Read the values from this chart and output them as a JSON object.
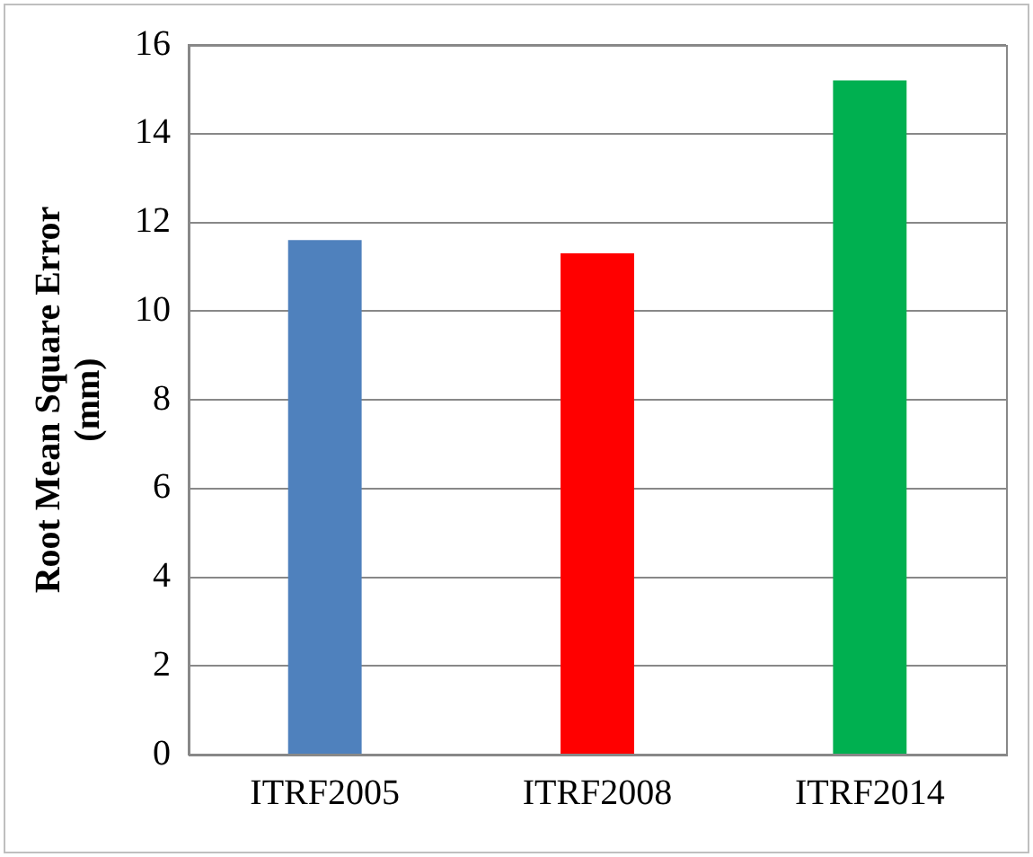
{
  "chart_data": {
    "type": "bar",
    "ylabel": "Root Mean Square Error (mm)",
    "categories": [
      "ITRF2005",
      "ITRF2008",
      "ITRF2014"
    ],
    "values": [
      11.6,
      11.3,
      15.2
    ],
    "colors": [
      "#4f81bd",
      "#ff0000",
      "#00b050"
    ],
    "ylim": [
      0,
      16
    ],
    "yticks": [
      0,
      2,
      4,
      6,
      8,
      10,
      12,
      14,
      16
    ],
    "grid": "y"
  }
}
